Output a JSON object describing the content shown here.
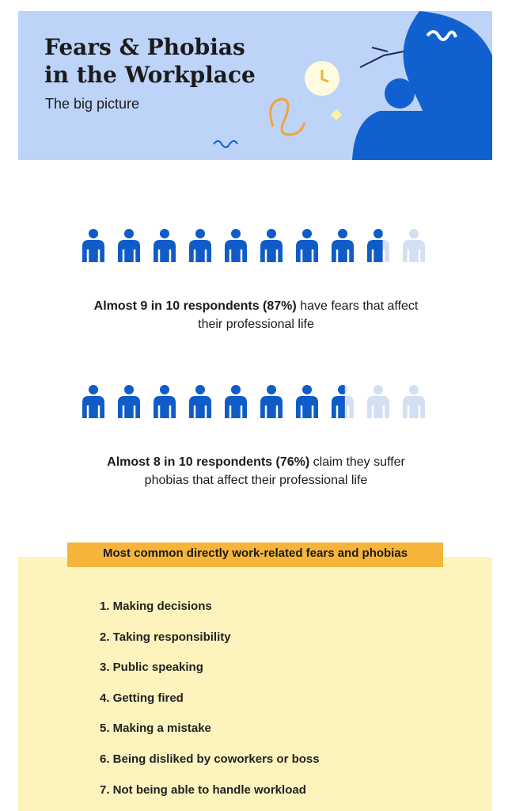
{
  "header": {
    "title_line1": "Fears & Phobias",
    "title_line2": "in the Workplace",
    "subtitle": "The big picture"
  },
  "stats": [
    {
      "lead": "Almost 9 in 10 respondents (87%)",
      "rest": "have fears that affect",
      "line2": "their professional life",
      "value": 87
    },
    {
      "lead": "Almost 8 in 10 respondents (76%)",
      "rest": "claim they suffer",
      "line2": "phobias that affect their professional life",
      "value": 76
    }
  ],
  "list": {
    "heading": "Most common directly work-related fears and phobias",
    "items": [
      "1. Making decisions",
      "2. Taking responsibility",
      "3. Public speaking",
      "4. Getting fired",
      "5. Making a mistake",
      "6. Being disliked by coworkers or boss",
      "7. Not being able to handle workload"
    ]
  }
}
